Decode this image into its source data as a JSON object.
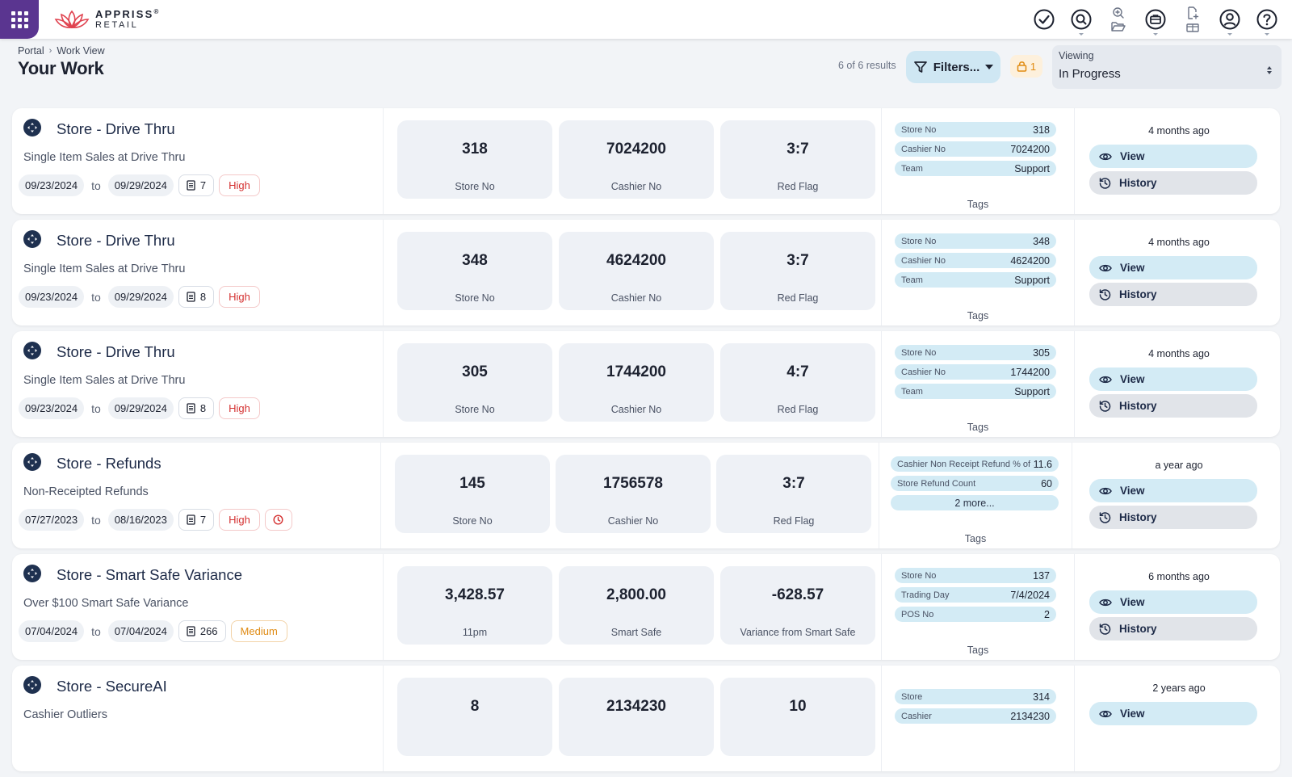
{
  "app": {
    "logo_line1": "APPRISS",
    "logo_tm": "®",
    "logo_line2": "RETAIL"
  },
  "header": {
    "breadcrumb": [
      "Portal",
      "Work View"
    ],
    "title": "Your Work",
    "results": "6 of 6 results",
    "filters_label": "Filters...",
    "lock_count": "1",
    "viewing_label": "Viewing",
    "viewing_value": "In Progress"
  },
  "colors": {
    "brand_purple": "#5a3590",
    "accent_blue": "#d3ebf5",
    "priority_high": "#d43030",
    "priority_medium": "#df8a12"
  },
  "cards": [
    {
      "title": "Store - Drive Thru",
      "subtitle": "Single Item Sales at Drive Thru",
      "date_from": "09/23/2024",
      "to_label": "to",
      "date_to": "09/29/2024",
      "count": "7",
      "priority": "High",
      "stats": [
        {
          "value": "318",
          "label": "Store No"
        },
        {
          "value": "7024200",
          "label": "Cashier No"
        },
        {
          "value": "3:7",
          "label": "Red Flag"
        }
      ],
      "tags": [
        {
          "key": "Store No",
          "value": "318"
        },
        {
          "key": "Cashier No",
          "value": "7024200"
        },
        {
          "key": "Team",
          "value": "Support"
        }
      ],
      "tags_label": "Tags",
      "ago": "4 months ago",
      "view_label": "View",
      "history_label": "History"
    },
    {
      "title": "Store - Drive Thru",
      "subtitle": "Single Item Sales at Drive Thru",
      "date_from": "09/23/2024",
      "to_label": "to",
      "date_to": "09/29/2024",
      "count": "8",
      "priority": "High",
      "stats": [
        {
          "value": "348",
          "label": "Store No"
        },
        {
          "value": "4624200",
          "label": "Cashier No"
        },
        {
          "value": "3:7",
          "label": "Red Flag"
        }
      ],
      "tags": [
        {
          "key": "Store No",
          "value": "348"
        },
        {
          "key": "Cashier No",
          "value": "4624200"
        },
        {
          "key": "Team",
          "value": "Support"
        }
      ],
      "tags_label": "Tags",
      "ago": "4 months ago",
      "view_label": "View",
      "history_label": "History"
    },
    {
      "title": "Store - Drive Thru",
      "subtitle": "Single Item Sales at Drive Thru",
      "date_from": "09/23/2024",
      "to_label": "to",
      "date_to": "09/29/2024",
      "count": "8",
      "priority": "High",
      "stats": [
        {
          "value": "305",
          "label": "Store No"
        },
        {
          "value": "1744200",
          "label": "Cashier No"
        },
        {
          "value": "4:7",
          "label": "Red Flag"
        }
      ],
      "tags": [
        {
          "key": "Store No",
          "value": "305"
        },
        {
          "key": "Cashier No",
          "value": "1744200"
        },
        {
          "key": "Team",
          "value": "Support"
        }
      ],
      "tags_label": "Tags",
      "ago": "4 months ago",
      "view_label": "View",
      "history_label": "History"
    },
    {
      "title": "Store - Refunds",
      "subtitle": "Non-Receipted Refunds",
      "date_from": "07/27/2023",
      "to_label": "to",
      "date_to": "08/16/2023",
      "count": "7",
      "priority": "High",
      "stats": [
        {
          "value": "145",
          "label": "Store No"
        },
        {
          "value": "1756578",
          "label": "Cashier No"
        },
        {
          "value": "3:7",
          "label": "Red Flag"
        }
      ],
      "tags": [
        {
          "key": "Cashier Non Receipt Refund % of St...",
          "value": "11.6"
        },
        {
          "key": "Store Refund Count",
          "value": "60"
        }
      ],
      "more_tags": "2 more...",
      "tags_label": "Tags",
      "ago": "a year ago",
      "view_label": "View",
      "history_label": "History"
    },
    {
      "title": "Store - Smart Safe Variance",
      "subtitle": "Over $100 Smart Safe Variance",
      "date_from": "07/04/2024",
      "to_label": "to",
      "date_to": "07/04/2024",
      "count": "266",
      "priority": "Medium",
      "stats": [
        {
          "value": "3,428.57",
          "label": "11pm"
        },
        {
          "value": "2,800.00",
          "label": "Smart Safe"
        },
        {
          "value": "-628.57",
          "label": "Variance from Smart Safe"
        }
      ],
      "tags": [
        {
          "key": "Store No",
          "value": "137"
        },
        {
          "key": "Trading Day",
          "value": "7/4/2024"
        },
        {
          "key": "POS No",
          "value": "2"
        }
      ],
      "tags_label": "Tags",
      "ago": "6 months ago",
      "view_label": "View",
      "history_label": "History"
    },
    {
      "title": "Store - SecureAI",
      "subtitle": "Cashier Outliers",
      "stats": [
        {
          "value": "8",
          "label": ""
        },
        {
          "value": "2134230",
          "label": ""
        },
        {
          "value": "10",
          "label": ""
        }
      ],
      "tags": [
        {
          "key": "Store",
          "value": "314"
        },
        {
          "key": "Cashier",
          "value": "2134230"
        }
      ],
      "ago": "2 years ago",
      "view_label": "View"
    }
  ]
}
